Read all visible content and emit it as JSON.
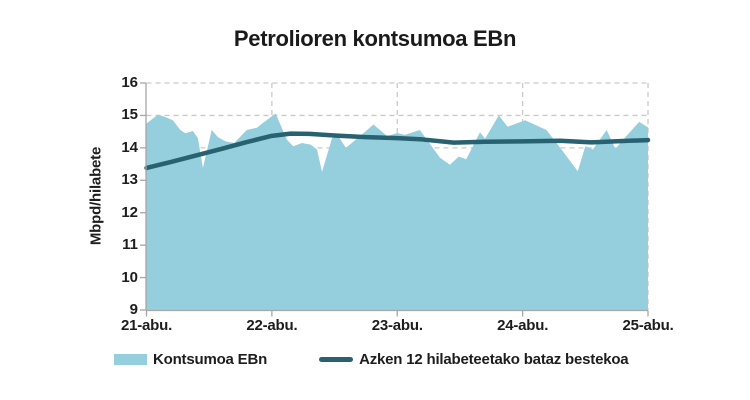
{
  "colors": {
    "area": "#95CEDD",
    "avg_line": "#28616F",
    "grid": "#C9C9C9",
    "axis": "#A6A6A6",
    "text": "#1D1D1D",
    "background": "#FFFFFF"
  },
  "legend": {
    "items": [
      {
        "label": "Kontsumoa EBn",
        "swatch": "area"
      },
      {
        "label": "Azken 12 hilabeteetako bataz bestekoa",
        "swatch": "line"
      }
    ]
  },
  "chart_data": {
    "type": "area",
    "title": "Petrolioren kontsumoa EBn",
    "xlabel": "",
    "ylabel": "Mbpd/hilabete",
    "ylim": [
      9,
      16
    ],
    "xlim": [
      0,
      4
    ],
    "yticks": [
      16,
      15,
      14,
      13,
      12,
      11,
      10,
      9
    ],
    "xticks": [
      "21-abu.",
      "22-abu.",
      "23-abu.",
      "24-abu.",
      "25-abu."
    ],
    "grid": "dashed",
    "legend_position": "bottom",
    "x_unit": "days since 21-abu.",
    "series": [
      {
        "name": "Kontsumoa EBn",
        "type": "area",
        "color": "#95CEDD",
        "points": [
          [
            0.0,
            14.75
          ],
          [
            0.09,
            15.02
          ],
          [
            0.15,
            14.95
          ],
          [
            0.21,
            14.85
          ],
          [
            0.27,
            14.55
          ],
          [
            0.31,
            14.45
          ],
          [
            0.37,
            14.52
          ],
          [
            0.41,
            14.3
          ],
          [
            0.45,
            13.38
          ],
          [
            0.52,
            14.55
          ],
          [
            0.57,
            14.33
          ],
          [
            0.63,
            14.2
          ],
          [
            0.7,
            14.15
          ],
          [
            0.8,
            14.55
          ],
          [
            0.88,
            14.62
          ],
          [
            0.94,
            14.8
          ],
          [
            1.03,
            15.06
          ],
          [
            1.12,
            14.25
          ],
          [
            1.17,
            14.05
          ],
          [
            1.24,
            14.15
          ],
          [
            1.31,
            14.1
          ],
          [
            1.36,
            13.95
          ],
          [
            1.4,
            13.26
          ],
          [
            1.48,
            14.3
          ],
          [
            1.53,
            14.36
          ],
          [
            1.59,
            14.0
          ],
          [
            1.7,
            14.35
          ],
          [
            1.81,
            14.72
          ],
          [
            1.92,
            14.36
          ],
          [
            2.0,
            14.46
          ],
          [
            2.06,
            14.4
          ],
          [
            2.18,
            14.55
          ],
          [
            2.34,
            13.7
          ],
          [
            2.42,
            13.48
          ],
          [
            2.49,
            13.73
          ],
          [
            2.55,
            13.65
          ],
          [
            2.66,
            14.48
          ],
          [
            2.7,
            14.28
          ],
          [
            2.81,
            15.0
          ],
          [
            2.88,
            14.65
          ],
          [
            3.02,
            14.85
          ],
          [
            3.19,
            14.55
          ],
          [
            3.3,
            14.0
          ],
          [
            3.44,
            13.28
          ],
          [
            3.5,
            14.05
          ],
          [
            3.56,
            13.95
          ],
          [
            3.67,
            14.55
          ],
          [
            3.74,
            13.97
          ],
          [
            3.84,
            14.42
          ],
          [
            3.93,
            14.8
          ],
          [
            4.0,
            14.63
          ]
        ]
      },
      {
        "name": "Azken 12 hilabeteetako bataz bestekoa",
        "type": "line",
        "color": "#28616F",
        "points": [
          [
            0.0,
            13.38
          ],
          [
            0.2,
            13.57
          ],
          [
            0.4,
            13.77
          ],
          [
            0.6,
            13.97
          ],
          [
            0.8,
            14.18
          ],
          [
            1.0,
            14.37
          ],
          [
            1.15,
            14.44
          ],
          [
            1.3,
            14.43
          ],
          [
            1.5,
            14.38
          ],
          [
            1.75,
            14.33
          ],
          [
            2.0,
            14.3
          ],
          [
            2.2,
            14.26
          ],
          [
            2.45,
            14.16
          ],
          [
            2.7,
            14.19
          ],
          [
            3.0,
            14.2
          ],
          [
            3.3,
            14.22
          ],
          [
            3.55,
            14.17
          ],
          [
            3.8,
            14.21
          ],
          [
            4.0,
            14.24
          ]
        ]
      }
    ]
  }
}
